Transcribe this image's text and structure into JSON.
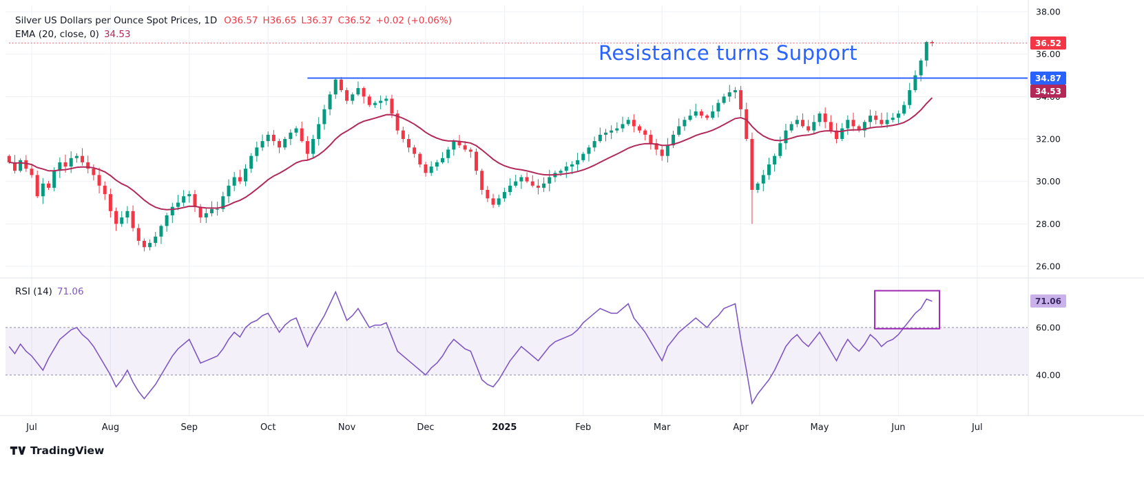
{
  "header": {
    "title": "Silver US Dollars per Ounce Spot Prices, 1D",
    "ohlc_o": "O36.57",
    "ohlc_h": "H36.65",
    "ohlc_l": "L36.37",
    "ohlc_c": "C36.52",
    "change": "+0.02 (+0.06%)",
    "ema_legend": "EMA (20, close, 0)",
    "ema_value": "34.53"
  },
  "annotation": {
    "text": "Resistance turns Support",
    "color": "#2962ff"
  },
  "badges": {
    "last_price": {
      "label": "36.52",
      "bg": "#f23645",
      "fg": "#ffffff"
    },
    "level": {
      "label": "34.87",
      "bg": "#2962ff",
      "fg": "#ffffff"
    },
    "ema": {
      "label": "34.53",
      "bg": "#b22957",
      "fg": "#ffffff"
    },
    "rsi": {
      "label": "71.06",
      "bg": "#c9b2ea",
      "fg": "#3b2764"
    }
  },
  "x_axis": [
    {
      "text": "Jul"
    },
    {
      "text": "Aug"
    },
    {
      "text": "Sep"
    },
    {
      "text": "Oct"
    },
    {
      "text": "Nov"
    },
    {
      "text": "Dec"
    },
    {
      "text": "2025",
      "bold": true
    },
    {
      "text": "Feb"
    },
    {
      "text": "Mar"
    },
    {
      "text": "Apr"
    },
    {
      "text": "May"
    },
    {
      "text": "Jun"
    },
    {
      "text": "Jul"
    }
  ],
  "watermark": {
    "label": "TradingView"
  },
  "chart_data": [
    {
      "type": "candlestick",
      "title": "Silver US Dollars per Ounce Spot Prices",
      "interval": "1D",
      "last": {
        "o": 36.57,
        "h": 36.65,
        "l": 36.37,
        "c": 36.52,
        "change": 0.02,
        "change_pct": 0.06
      },
      "bars_per_month": 14,
      "first_open": 31.2,
      "closes": [
        30.9,
        30.5,
        31.0,
        30.6,
        30.3,
        29.3,
        29.9,
        29.7,
        30.5,
        30.9,
        30.7,
        31.1,
        31.2,
        30.9,
        30.6,
        30.3,
        29.8,
        29.4,
        28.6,
        28.0,
        28.3,
        28.6,
        27.8,
        27.2,
        26.9,
        27.1,
        27.4,
        27.9,
        28.4,
        28.8,
        29.0,
        29.3,
        29.4,
        28.8,
        28.3,
        28.5,
        28.7,
        28.7,
        29.3,
        29.8,
        30.2,
        30.0,
        30.6,
        31.2,
        31.6,
        31.9,
        32.2,
        31.9,
        31.6,
        32.0,
        32.3,
        32.5,
        31.9,
        31.3,
        32.0,
        32.7,
        33.4,
        34.1,
        34.8,
        34.3,
        33.8,
        34.1,
        34.4,
        34.0,
        33.6,
        33.7,
        33.8,
        33.9,
        33.2,
        32.4,
        32.0,
        31.6,
        31.3,
        30.8,
        30.4,
        30.7,
        30.9,
        31.1,
        31.5,
        31.9,
        31.7,
        31.5,
        31.4,
        30.5,
        29.6,
        29.2,
        28.9,
        29.2,
        29.5,
        29.8,
        30.0,
        30.2,
        30.0,
        29.8,
        29.7,
        29.9,
        30.2,
        30.4,
        30.5,
        30.7,
        30.8,
        31.0,
        31.3,
        31.6,
        31.9,
        32.2,
        32.3,
        32.4,
        32.5,
        32.7,
        32.9,
        32.6,
        32.4,
        32.2,
        31.8,
        31.5,
        31.2,
        31.7,
        32.2,
        32.6,
        32.9,
        33.1,
        33.3,
        33.1,
        33.0,
        33.3,
        33.7,
        34.0,
        34.2,
        34.3,
        33.4,
        32.0,
        29.6,
        29.9,
        30.3,
        30.8,
        31.2,
        31.8,
        32.4,
        32.7,
        32.9,
        32.6,
        32.4,
        32.8,
        33.2,
        32.8,
        32.4,
        32.0,
        32.5,
        32.9,
        32.6,
        32.4,
        32.8,
        33.1,
        32.9,
        32.7,
        32.9,
        33.0,
        33.2,
        33.6,
        34.3,
        35.0,
        35.7,
        36.57,
        36.52
      ],
      "wick_overrides": {
        "58": {
          "h": 34.9
        },
        "129": {
          "h": 34.45
        },
        "132": {
          "l": 28.0
        },
        "163": {
          "h": 36.62
        },
        "164": {
          "h": 36.65,
          "l": 36.37
        }
      },
      "up_color": "#089981",
      "down_color": "#f23645",
      "ema": {
        "length": 20,
        "source": "close",
        "offset": 0,
        "last": 34.53,
        "color": "#b22957"
      },
      "levels": [
        {
          "name": "resistance-support",
          "value": 34.87,
          "color": "#2962ff",
          "style": "solid",
          "from_bar": 53
        },
        {
          "name": "last-price",
          "value": 36.52,
          "color": "#f23645",
          "style": "dotted",
          "from_bar": 0
        }
      ],
      "y_ticks": [
        38,
        36,
        34,
        32,
        30,
        28,
        26
      ]
    },
    {
      "type": "line",
      "name": "RSI (14)",
      "length": 14,
      "last": 71.06,
      "color": "#7e57c2",
      "values": [
        52,
        49,
        53,
        50,
        48,
        45,
        42,
        47,
        51,
        55,
        57,
        59,
        60,
        57,
        55,
        52,
        48,
        44,
        40,
        35,
        38,
        42,
        37,
        33,
        30,
        33,
        36,
        40,
        44,
        48,
        51,
        53,
        55,
        50,
        45,
        46,
        47,
        48,
        51,
        55,
        58,
        56,
        60,
        62,
        63,
        65,
        66,
        62,
        58,
        61,
        63,
        64,
        58,
        52,
        57,
        61,
        65,
        70,
        75,
        69,
        63,
        65,
        68,
        64,
        60,
        61,
        61,
        62,
        56,
        50,
        48,
        46,
        44,
        42,
        40,
        43,
        45,
        48,
        52,
        55,
        53,
        51,
        50,
        44,
        38,
        36,
        35,
        38,
        42,
        46,
        49,
        52,
        50,
        48,
        46,
        49,
        52,
        54,
        55,
        56,
        57,
        59,
        62,
        64,
        66,
        68,
        67,
        66,
        66,
        68,
        70,
        64,
        61,
        58,
        54,
        50,
        46,
        52,
        55,
        58,
        60,
        62,
        64,
        62,
        60,
        63,
        65,
        68,
        69,
        70,
        55,
        42,
        28,
        32,
        35,
        38,
        42,
        47,
        52,
        55,
        57,
        54,
        52,
        55,
        58,
        54,
        50,
        46,
        51,
        55,
        52,
        50,
        53,
        57,
        55,
        52,
        54,
        55,
        57,
        60,
        63,
        66,
        68,
        72,
        71.06
      ],
      "band": {
        "upper": 60,
        "lower": 40,
        "fill": "#7e57c2",
        "fill_opacity": 0.09
      },
      "y_ticks": [
        60,
        40
      ],
      "highlight_box": {
        "from_bar": 153.8,
        "to_bar": 165.3,
        "top": 75.5,
        "bottom": 59.5,
        "color": "#9c27b0"
      }
    }
  ]
}
